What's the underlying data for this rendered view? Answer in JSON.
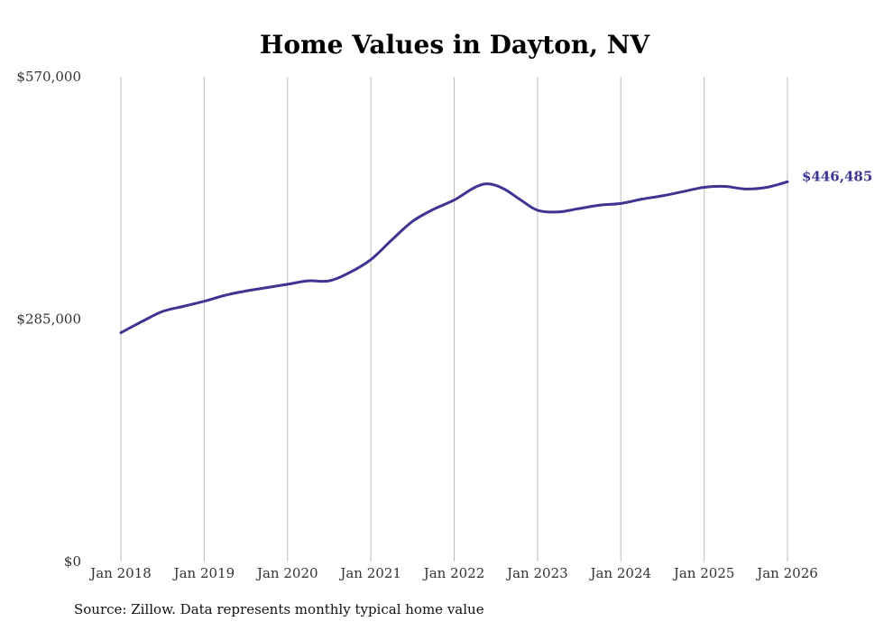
{
  "chart_data": {
    "type": "line",
    "title": "Home Values in Dayton, NV",
    "xlabel": "",
    "ylabel": "",
    "ylim": [
      0,
      570000
    ],
    "y_ticks": [
      {
        "value": 0,
        "label": "$0"
      },
      {
        "value": 285000,
        "label": "$285,000"
      },
      {
        "value": 570000,
        "label": "$570,000"
      }
    ],
    "x_ticks": [
      {
        "value": 2018,
        "label": "Jan 2018"
      },
      {
        "value": 2019,
        "label": "Jan 2019"
      },
      {
        "value": 2020,
        "label": "Jan 2020"
      },
      {
        "value": 2021,
        "label": "Jan 2021"
      },
      {
        "value": 2022,
        "label": "Jan 2022"
      },
      {
        "value": 2023,
        "label": "Jan 2023"
      },
      {
        "value": 2024,
        "label": "Jan 2024"
      },
      {
        "value": 2025,
        "label": "Jan 2025"
      },
      {
        "value": 2026,
        "label": "Jan 2026"
      }
    ],
    "xlim": [
      2018,
      2026
    ],
    "grid": "vertical",
    "series": [
      {
        "name": "Typical home value",
        "color": "#3d3591",
        "x": [
          2018.0,
          2018.25,
          2018.5,
          2018.75,
          2019.0,
          2019.25,
          2019.5,
          2019.75,
          2020.0,
          2020.25,
          2020.5,
          2020.75,
          2021.0,
          2021.25,
          2021.5,
          2021.75,
          2022.0,
          2022.25,
          2022.42,
          2022.6,
          2022.8,
          2023.0,
          2023.25,
          2023.5,
          2023.75,
          2024.0,
          2024.25,
          2024.5,
          2024.75,
          2025.0,
          2025.25,
          2025.5,
          2025.75,
          2026.0
        ],
        "values": [
          269000,
          282000,
          294000,
          300000,
          306000,
          313000,
          318000,
          322000,
          326000,
          330000,
          330000,
          340000,
          355000,
          378000,
          400000,
          414000,
          425000,
          440000,
          444000,
          438000,
          425000,
          413000,
          411000,
          415000,
          419000,
          421000,
          426000,
          430000,
          435000,
          440000,
          441000,
          438000,
          440000,
          446485
        ]
      }
    ],
    "end_label": "$446,485"
  },
  "footer": {
    "source": "Source: Zillow. Data represents monthly typical home value"
  }
}
